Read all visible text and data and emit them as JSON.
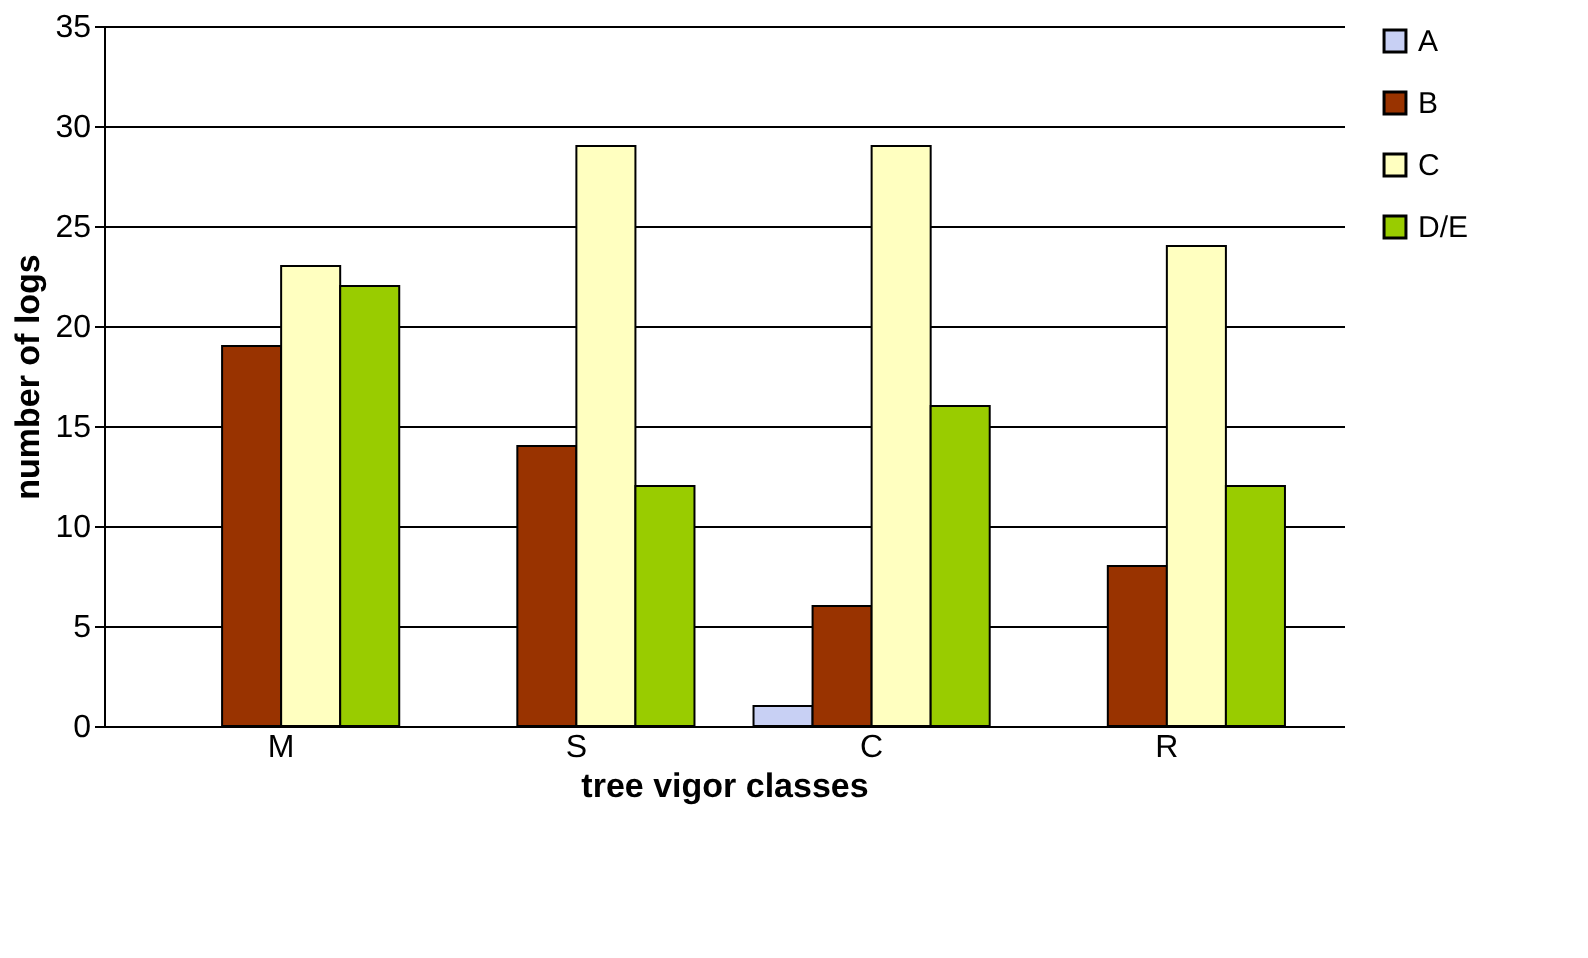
{
  "chart_data": {
    "type": "bar",
    "xlabel": "tree vigor classes",
    "ylabel": "number of logs",
    "categories": [
      "M",
      "S",
      "C",
      "R"
    ],
    "series": [
      {
        "name": "A",
        "color": "#c8d0f4",
        "values": [
          null,
          null,
          1,
          null
        ]
      },
      {
        "name": "B",
        "color": "#993300",
        "values": [
          19,
          14,
          6,
          8
        ]
      },
      {
        "name": "C",
        "color": "#ffffc0",
        "values": [
          23,
          29,
          29,
          24
        ]
      },
      {
        "name": "D/E",
        "color": "#99cc00",
        "values": [
          22,
          12,
          16,
          12
        ]
      }
    ],
    "ylim": [
      0,
      35
    ],
    "yticks": [
      0,
      5,
      10,
      15,
      20,
      25,
      30,
      35
    ],
    "grid": "y",
    "legend": "top right"
  }
}
